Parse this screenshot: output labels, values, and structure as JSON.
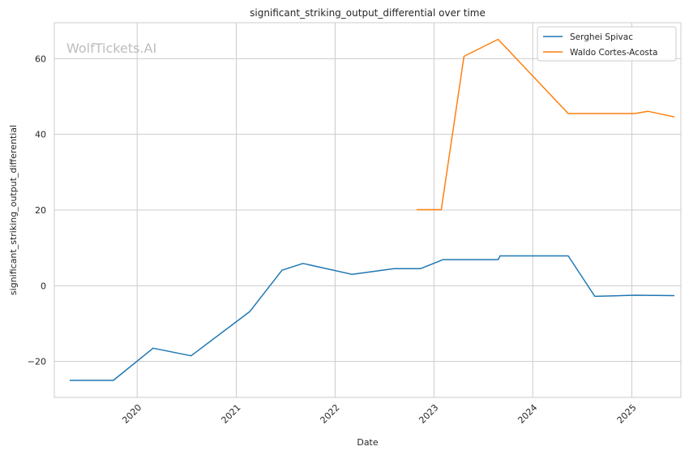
{
  "chart_data": {
    "type": "line",
    "title": "significant_striking_output_differential over time",
    "xlabel": "Date",
    "ylabel": "significant_striking_output_differential",
    "watermark": "WolfTickets.AI",
    "x_ticks": [
      "2020",
      "2021",
      "2022",
      "2023",
      "2024",
      "2025"
    ],
    "y_ticks": [
      -20,
      0,
      20,
      40,
      60
    ],
    "x_tick_labels": [
      "2020",
      "2021",
      "2022",
      "2023",
      "2024",
      "2025"
    ],
    "y_tick_labels": [
      "−20",
      "0",
      "20",
      "40",
      "60"
    ],
    "xlim": [
      "2019-03-01",
      "2025-07-01"
    ],
    "ylim": [
      -29.5,
      69.5
    ],
    "grid": true,
    "legend_position": "top-right",
    "series": [
      {
        "name": "Serghei Spivac",
        "color": "#1f77b4",
        "points": [
          [
            "2019-04-27",
            -25
          ],
          [
            "2019-10-05",
            -25
          ],
          [
            "2020-02-29",
            -16.5
          ],
          [
            "2020-07-18",
            -18.5
          ],
          [
            "2021-02-20",
            -6.8
          ],
          [
            "2021-06-19",
            4.1
          ],
          [
            "2021-09-04",
            5.9
          ],
          [
            "2022-03-05",
            3.0
          ],
          [
            "2022-08-06",
            4.5
          ],
          [
            "2022-11-12",
            4.5
          ],
          [
            "2023-02-04",
            6.9
          ],
          [
            "2023-08-26",
            6.9
          ],
          [
            "2023-09-02",
            7.9
          ],
          [
            "2024-05-11",
            7.9
          ],
          [
            "2024-08-17",
            -2.8
          ],
          [
            "2025-01-11",
            -2.5
          ],
          [
            "2025-06-07",
            -2.6
          ]
        ]
      },
      {
        "name": "Waldo Cortes-Acosta",
        "color": "#ff7f0e",
        "points": [
          [
            "2022-10-29",
            20.1
          ],
          [
            "2023-01-28",
            20.1
          ],
          [
            "2023-04-22",
            60.6
          ],
          [
            "2023-08-26",
            65.1
          ],
          [
            "2024-05-11",
            45.5
          ],
          [
            "2025-01-11",
            45.5
          ],
          [
            "2025-03-01",
            46.1
          ],
          [
            "2025-06-07",
            44.6
          ]
        ]
      }
    ]
  }
}
